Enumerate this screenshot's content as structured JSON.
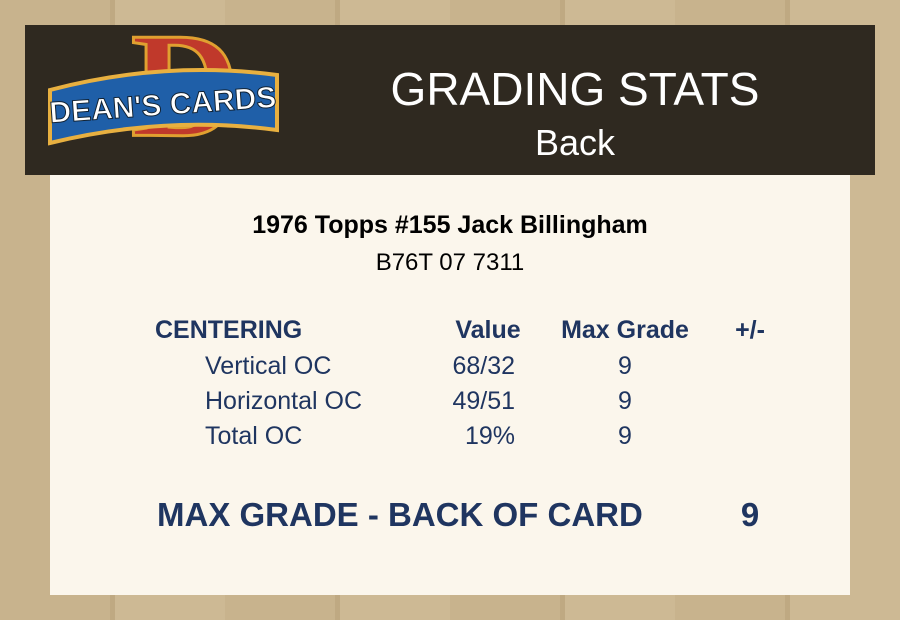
{
  "logo": {
    "letter": "D",
    "text": "DEAN'S CARDS"
  },
  "header": {
    "title": "GRADING STATS",
    "subtitle": "Back"
  },
  "card": {
    "title": "1976 Topps #155 Jack Billingham",
    "cert": "B76T 07 7311"
  },
  "table": {
    "headers": [
      "CENTERING",
      "Value",
      "Max Grade",
      "+/-"
    ],
    "rows": [
      [
        "Vertical OC",
        "68/32",
        9
      ],
      [
        "Horizontal OC",
        "49/51",
        9
      ],
      [
        "Total OC",
        "19%",
        9
      ]
    ]
  },
  "summary": {
    "label": "MAX GRADE - BACK OF CARD",
    "value": 9
  }
}
